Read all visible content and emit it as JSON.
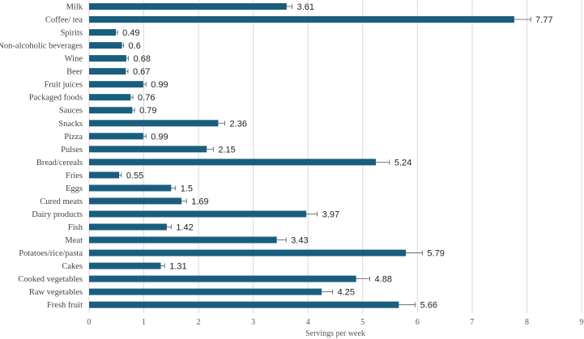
{
  "colors": {
    "bar": "#1a5e7e",
    "grid": "#d9d9d9",
    "error_bar": "#555555"
  },
  "chart_data": {
    "type": "bar",
    "orientation": "horizontal",
    "title": "",
    "xlabel": "Servings per week",
    "ylabel": "",
    "xlim": [
      0,
      9
    ],
    "xticks": [
      0,
      1,
      2,
      3,
      4,
      5,
      6,
      7,
      8,
      9
    ],
    "grid": true,
    "categories": [
      "Milk",
      "Coffee/ tea",
      "Spirits",
      "Non-alcoholic beverages",
      "Wine",
      "Beer",
      "Fruit juices",
      "Packaged foods",
      "Sauces",
      "Snacks",
      "Pizza",
      "Pulses",
      "Bread/cereals",
      "Fries",
      "Eggs",
      "Cured meats",
      "Dairy products",
      "Fish",
      "Meat",
      "Potatoes/rice/pasta",
      "Cakes",
      "Cooked vegetables",
      "Raw vegetables",
      "Fresh fruit"
    ],
    "values": [
      3.61,
      7.77,
      0.49,
      0.6,
      0.68,
      0.67,
      0.99,
      0.76,
      0.79,
      2.36,
      0.99,
      2.15,
      5.24,
      0.55,
      1.5,
      1.69,
      3.97,
      1.42,
      3.43,
      5.79,
      1.31,
      4.88,
      4.25,
      5.66
    ],
    "value_labels": [
      "3.61",
      "7.77",
      "0.49",
      "0.6",
      "0.68",
      "0.67",
      "0.99",
      "0.76",
      "0.79",
      "2.36",
      "0.99",
      "2.15",
      "5.24",
      "0.55",
      "1.5",
      "1.69",
      "3.97",
      "1.42",
      "3.43",
      "5.79",
      "1.31",
      "4.88",
      "4.25",
      "5.66"
    ],
    "errors": [
      0.1,
      0.3,
      0.03,
      0.03,
      0.04,
      0.04,
      0.05,
      0.04,
      0.04,
      0.12,
      0.05,
      0.12,
      0.25,
      0.04,
      0.08,
      0.09,
      0.2,
      0.08,
      0.17,
      0.3,
      0.07,
      0.25,
      0.2,
      0.3
    ]
  }
}
